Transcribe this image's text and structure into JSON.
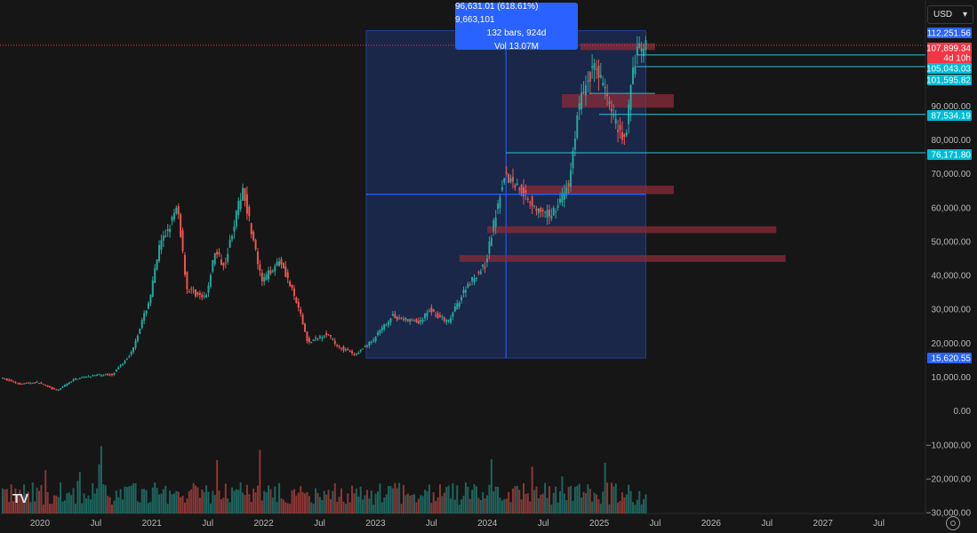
{
  "currency": {
    "label": "USD",
    "chevron": "▾"
  },
  "measure": {
    "line1": "96,631.01 (618.61%) 9,663,101",
    "line2": "132 bars, 924d",
    "line3": "Vol 13.07M"
  },
  "logo_text": "TV",
  "colors": {
    "background": "#161616",
    "up": "#26a69a",
    "down": "#ef5350",
    "measure_fill": "#2962ff",
    "hline": "#26c6da",
    "zone": "#8b2b38",
    "last_price": "#f23645",
    "tag_blue": "#2962ff",
    "tag_cyan": "#00bcd4"
  },
  "chart_data": {
    "type": "candlestick",
    "title": "",
    "xlabel": "",
    "ylabel": "",
    "ylim": [
      -30000,
      115000
    ],
    "grid": false,
    "x_ticks": [
      "2020",
      "Jul",
      "2021",
      "Jul",
      "2022",
      "Jul",
      "2023",
      "Jul",
      "2024",
      "Jul",
      "2025",
      "Jul",
      "2026",
      "Jul",
      "2027",
      "Jul"
    ],
    "y_ticks": [
      "90,000.00",
      "80,000.00",
      "70,000.00",
      "60,000.00",
      "50,000.00",
      "40,000.00",
      "30,000.00",
      "20,000.00",
      "10,000.00",
      "0.00",
      "−10,000.00",
      "−20,000.00",
      "−30,000.00"
    ],
    "price_tags": [
      {
        "label": "112,251.56",
        "value": 112251.56,
        "kind": "blue"
      },
      {
        "label": "107,899.34",
        "value": 107899.34,
        "kind": "last"
      },
      {
        "label": "4d 10h",
        "value": 105500,
        "kind": "last"
      },
      {
        "label": "105,043.03",
        "value": 105043.03,
        "kind": "cyan"
      },
      {
        "label": "101,595.82",
        "value": 101595.82,
        "kind": "cyan"
      },
      {
        "label": "87,534.19",
        "value": 87534.19,
        "kind": "cyan"
      },
      {
        "label": "76,171.80",
        "value": 76171.8,
        "kind": "cyan"
      },
      {
        "label": "15,620.55",
        "value": 15620.55,
        "kind": "blue"
      }
    ],
    "price_path": [
      [
        "2019-09",
        9800
      ],
      [
        "2019-11",
        8000
      ],
      [
        "2020-01",
        8500
      ],
      [
        "2020-03",
        6000
      ],
      [
        "2020-05",
        9500
      ],
      [
        "2020-07",
        10500
      ],
      [
        "2020-09",
        10800
      ],
      [
        "2020-11",
        17000
      ],
      [
        "2021-01",
        33000
      ],
      [
        "2021-02",
        48000
      ],
      [
        "2021-04",
        60000
      ],
      [
        "2021-05",
        36000
      ],
      [
        "2021-07",
        33000
      ],
      [
        "2021-08",
        47000
      ],
      [
        "2021-09",
        43000
      ],
      [
        "2021-11",
        66000
      ],
      [
        "2022-01",
        38000
      ],
      [
        "2022-03",
        45000
      ],
      [
        "2022-05",
        30000
      ],
      [
        "2022-06",
        20000
      ],
      [
        "2022-08",
        23000
      ],
      [
        "2022-09",
        19500
      ],
      [
        "2022-11",
        16500
      ],
      [
        "2023-01",
        21000
      ],
      [
        "2023-03",
        28000
      ],
      [
        "2023-06",
        26000
      ],
      [
        "2023-07",
        30000
      ],
      [
        "2023-09",
        26000
      ],
      [
        "2023-11",
        37000
      ],
      [
        "2024-01",
        43000
      ],
      [
        "2024-03",
        70000
      ],
      [
        "2024-05",
        65000
      ],
      [
        "2024-07",
        58000
      ],
      [
        "2024-08",
        58000
      ],
      [
        "2024-09",
        62000
      ],
      [
        "2024-10",
        67000
      ],
      [
        "2024-11",
        90000
      ],
      [
        "2024-12",
        98000
      ],
      [
        "2025-01",
        102000
      ],
      [
        "2025-03",
        85000
      ],
      [
        "2025-04",
        80000
      ],
      [
        "2025-05",
        104000
      ],
      [
        "2025-06",
        107899
      ]
    ],
    "levels": [
      105043.03,
      101595.82,
      93700,
      87534.19,
      76171.8,
      64000
    ],
    "zones": [
      {
        "from": "2024-11",
        "to": "2025-07",
        "low": 106500,
        "high": 108500
      },
      {
        "from": "2024-09",
        "to": "2025-09",
        "low": 89500,
        "high": 93500
      },
      {
        "from": "2024-05",
        "to": "2025-09",
        "low": 64000,
        "high": 66500
      },
      {
        "from": "2024-01",
        "to": "2026-08",
        "low": 52500,
        "high": 54500
      },
      {
        "from": "2023-10",
        "to": "2026-09",
        "low": 44000,
        "high": 46000
      }
    ],
    "measure_range": {
      "from": "2022-12",
      "to": "2025-06",
      "low": 15620.55,
      "high": 112251.56
    },
    "volume_note": "Volume histogram plotted on the lower pane, roughly 0 to 6,000 scaled units per bar"
  }
}
